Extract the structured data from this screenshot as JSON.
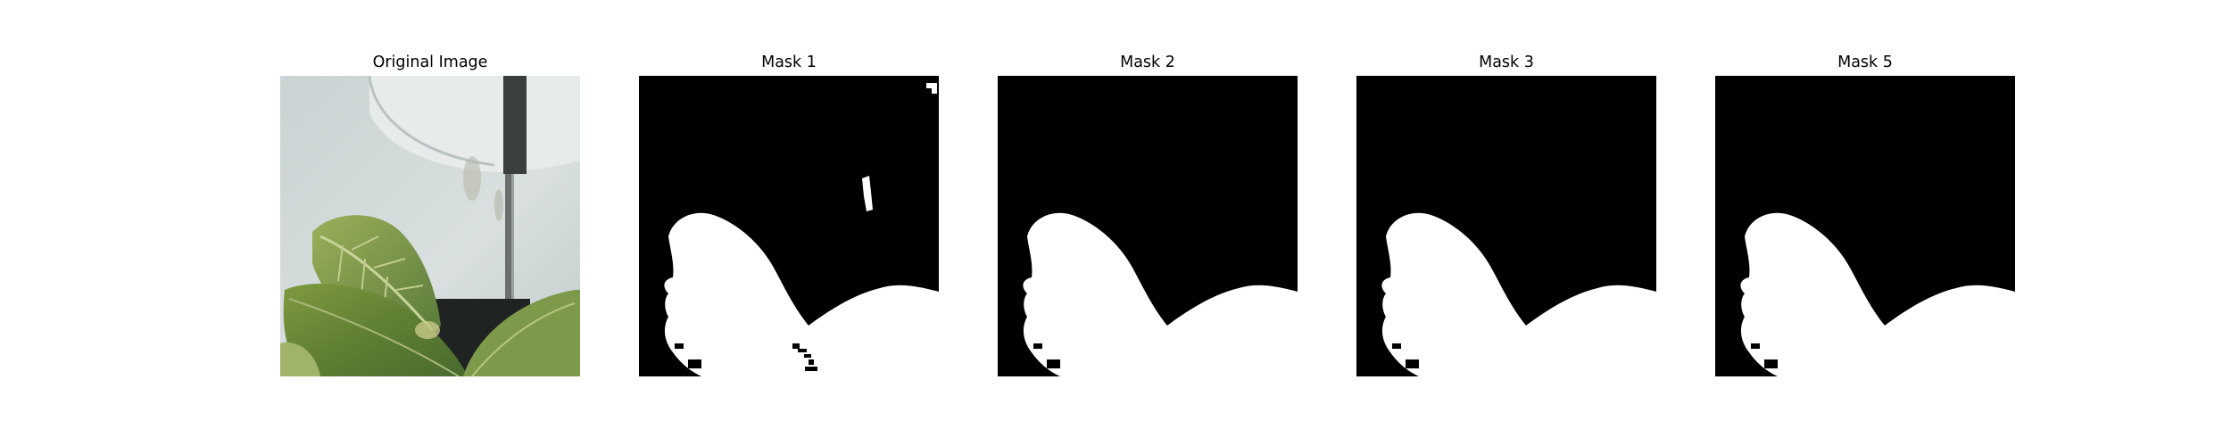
{
  "figure": {
    "panels": [
      {
        "title": "Original Image",
        "kind": "photo"
      },
      {
        "title": "Mask 1",
        "kind": "mask",
        "noise": true
      },
      {
        "title": "Mask 2",
        "kind": "mask",
        "noise": false
      },
      {
        "title": "Mask 3",
        "kind": "mask",
        "noise": false
      },
      {
        "title": "Mask 5",
        "kind": "mask",
        "noise": false
      }
    ]
  },
  "colors": {
    "background": "#ffffff",
    "mask_bg": "#000000",
    "mask_fg": "#ffffff"
  }
}
